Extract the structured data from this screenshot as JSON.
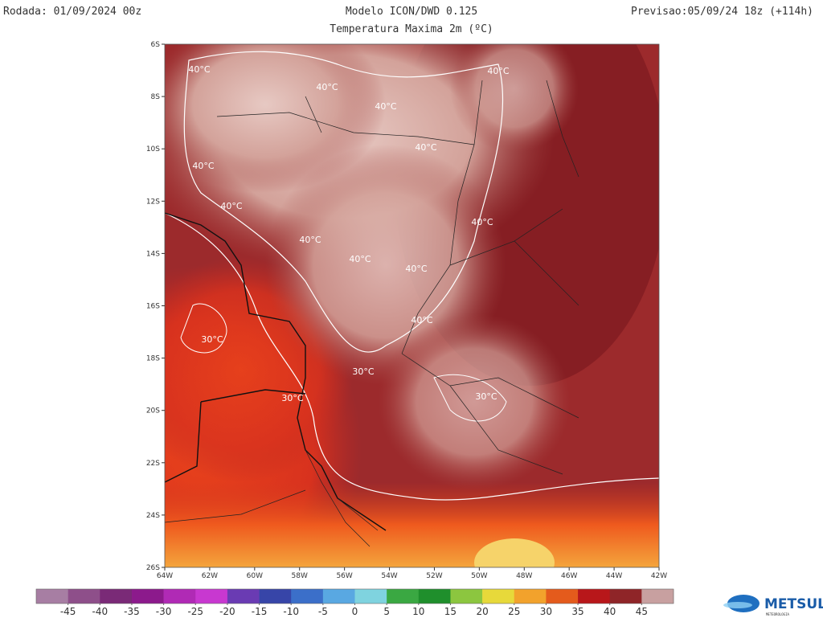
{
  "header": {
    "run": "Rodada: 01/09/2024 00z",
    "model": "Modelo ICON/DWD 0.125",
    "forecast": "Previsao:05/09/24 18z (+114h)",
    "subtitle": "Temperatura Maxima 2m (ºC)"
  },
  "map": {
    "lat_labels": [
      "6S",
      "8S",
      "10S",
      "12S",
      "14S",
      "16S",
      "18S",
      "20S",
      "22S",
      "24S",
      "26S"
    ],
    "lon_labels": [
      "64W",
      "62W",
      "60W",
      "58W",
      "56W",
      "54W",
      "52W",
      "50W",
      "48W",
      "46W",
      "44W",
      "42W"
    ],
    "contour_labels": [
      "40°C",
      "40°C",
      "40°C",
      "40°C",
      "40°C",
      "40°C",
      "40°C",
      "40°C",
      "40°C",
      "40°C",
      "40°C",
      "40°C",
      "30°C",
      "30°C",
      "30°C",
      "30°C"
    ]
  },
  "colorbar": {
    "range": [
      -50,
      50
    ],
    "ticks": [
      -45,
      -40,
      -35,
      -30,
      -25,
      -20,
      -15,
      -10,
      -5,
      0,
      5,
      10,
      15,
      20,
      25,
      30,
      35,
      40,
      45
    ],
    "colors": [
      "#a77ea3",
      "#8e4f8a",
      "#7a2a77",
      "#8c1a8c",
      "#b02ab5",
      "#c838d0",
      "#6a3bb3",
      "#3745a8",
      "#3b6fc9",
      "#59a8e2",
      "#7fd3df",
      "#3aa842",
      "#1f8f2c",
      "#8cc63f",
      "#e7d93a",
      "#f2a22c",
      "#e45b1c",
      "#b8171a",
      "#8f2528",
      "#c8a0a0"
    ]
  },
  "logo": {
    "name": "METSUL",
    "tagline": "METEOROLOGIA"
  }
}
